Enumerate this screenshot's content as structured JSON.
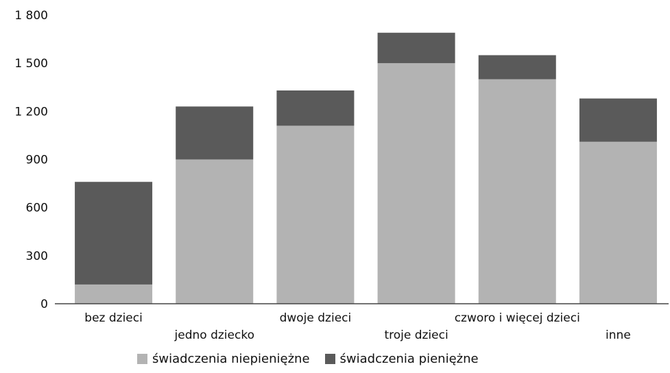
{
  "chart_data": {
    "type": "bar",
    "stacked": true,
    "categories": [
      "bez dzieci",
      "jedno dziecko",
      "dwoje dzieci",
      "troje dzieci",
      "czworo i więcej dzieci",
      "inne"
    ],
    "series": [
      {
        "name": "świadczenia niepieniężne",
        "values": [
          120,
          900,
          1110,
          1500,
          1400,
          1010
        ],
        "color": "#b3b3b3"
      },
      {
        "name": "świadczenia pieniężne",
        "values": [
          640,
          330,
          220,
          190,
          150,
          270
        ],
        "color": "#5a5a5a"
      }
    ],
    "yticks": [
      "0",
      "300",
      "600",
      "900",
      "1 200",
      "1 500",
      "1 800"
    ],
    "ylim": [
      0,
      1800
    ],
    "grid": false,
    "legend_position": "bottom"
  }
}
